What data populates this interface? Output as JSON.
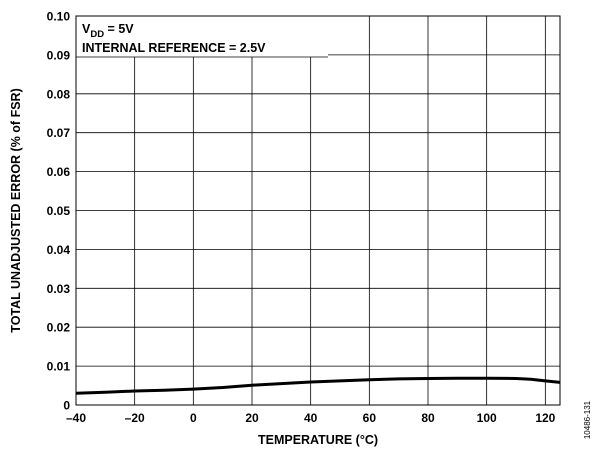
{
  "chart_data": {
    "type": "line",
    "xlabel": "TEMPERATURE (°C)",
    "ylabel": "TOTAL UNADJUSTED ERROR (% of FSR)",
    "xlim": [
      -40,
      125
    ],
    "ylim": [
      0,
      0.1
    ],
    "x_ticks": [
      -40,
      -20,
      0,
      20,
      40,
      60,
      80,
      100,
      120
    ],
    "x_tick_labels": [
      "–40",
      "–20",
      "0",
      "20",
      "40",
      "60",
      "80",
      "100",
      "120"
    ],
    "y_ticks": [
      0,
      0.01,
      0.02,
      0.03,
      0.04,
      0.05,
      0.06,
      0.07,
      0.08,
      0.09,
      0.1
    ],
    "y_tick_labels": [
      "0",
      "0.01",
      "0.02",
      "0.03",
      "0.04",
      "0.05",
      "0.06",
      "0.07",
      "0.08",
      "0.09",
      "0.10"
    ],
    "grid": true,
    "annotation": {
      "vdd_main": "V",
      "vdd_sub": "DD",
      "vdd_rest": " = 5V",
      "reference": "INTERNAL REFERENCE = 2.5V"
    },
    "series": [
      {
        "color": "#000000",
        "x": [
          -40,
          -30,
          -20,
          -10,
          0,
          10,
          20,
          30,
          40,
          50,
          60,
          70,
          80,
          90,
          100,
          110,
          115,
          120,
          125
        ],
        "y": [
          0.003,
          0.0033,
          0.0036,
          0.0038,
          0.0041,
          0.0045,
          0.0051,
          0.0055,
          0.0059,
          0.0062,
          0.0065,
          0.0067,
          0.0068,
          0.0069,
          0.0069,
          0.0068,
          0.0066,
          0.0062,
          0.0058
        ]
      }
    ]
  },
  "figure_code": "10486-131"
}
